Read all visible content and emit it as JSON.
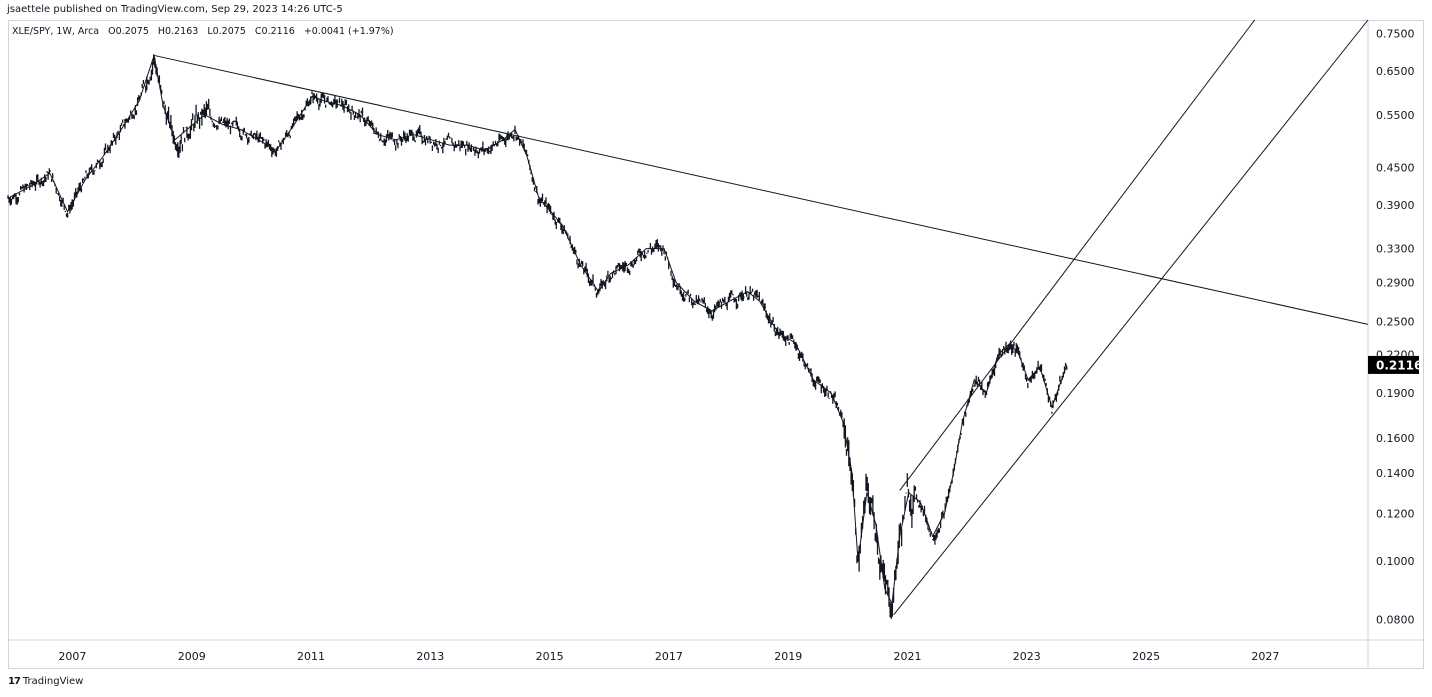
{
  "header": {
    "published_line": "jsaettele published on TradingView.com, Sep 29, 2023 14:26 UTC-5"
  },
  "legend": {
    "symbol": "XLE/SPY, 1W, Arca",
    "open": "O0.2075",
    "high": "H0.2163",
    "low": "L0.2075",
    "close": "C0.2116",
    "change": "+0.0041 (+1.97%)"
  },
  "footer": {
    "logo_glyph": "17",
    "brand": "TradingView"
  },
  "chart_data": {
    "type": "line",
    "yscale": "log",
    "ylim": [
      0.074,
      0.79
    ],
    "xlim": [
      2006.0,
      2028.8
    ],
    "yticks": [
      "0.7500",
      "0.6500",
      "0.5500",
      "0.4500",
      "0.3900",
      "0.3300",
      "0.2900",
      "0.2500",
      "0.2200",
      "0.1900",
      "0.1600",
      "0.1400",
      "0.1200",
      "0.1000",
      "0.0800"
    ],
    "xticks": [
      "2007",
      "2009",
      "2011",
      "2013",
      "2015",
      "2017",
      "2019",
      "2021",
      "2023",
      "2025",
      "2027"
    ],
    "last_price": "0.2116",
    "series": [
      {
        "x": [
          2006.0,
          2006.4,
          2006.7,
          2007.0,
          2007.3,
          2007.6,
          2007.9,
          2008.2,
          2008.45,
          2008.6,
          2008.8,
          2009.0,
          2009.3,
          2009.6,
          2009.9,
          2010.2,
          2010.5,
          2010.8,
          2011.1,
          2011.3,
          2011.6,
          2011.9,
          2012.2,
          2012.5,
          2012.8,
          2013.1,
          2013.4,
          2013.7,
          2014.0,
          2014.3,
          2014.5,
          2014.7,
          2014.9,
          2015.1,
          2015.3,
          2015.6,
          2015.9,
          2016.1,
          2016.4,
          2016.7,
          2017.0,
          2017.2,
          2017.5,
          2017.8,
          2018.1,
          2018.4,
          2018.6,
          2018.9,
          2019.2,
          2019.5,
          2019.8,
          2020.0,
          2020.15,
          2020.25,
          2020.4,
          2020.55,
          2020.7,
          2020.82,
          2020.95,
          2021.1,
          2021.3,
          2021.5,
          2021.7,
          2021.85,
          2022.0,
          2022.2,
          2022.4,
          2022.6,
          2022.8,
          2022.95,
          2023.1,
          2023.3,
          2023.5,
          2023.75
        ],
        "values": [
          0.4,
          0.42,
          0.44,
          0.38,
          0.43,
          0.47,
          0.52,
          0.58,
          0.69,
          0.57,
          0.5,
          0.52,
          0.55,
          0.53,
          0.52,
          0.5,
          0.48,
          0.53,
          0.59,
          0.58,
          0.57,
          0.55,
          0.51,
          0.5,
          0.51,
          0.5,
          0.49,
          0.49,
          0.48,
          0.5,
          0.52,
          0.47,
          0.4,
          0.38,
          0.36,
          0.31,
          0.28,
          0.3,
          0.31,
          0.33,
          0.33,
          0.29,
          0.27,
          0.26,
          0.27,
          0.28,
          0.27,
          0.24,
          0.23,
          0.2,
          0.19,
          0.17,
          0.14,
          0.1,
          0.13,
          0.115,
          0.09,
          0.085,
          0.11,
          0.13,
          0.125,
          0.11,
          0.12,
          0.14,
          0.17,
          0.2,
          0.19,
          0.22,
          0.23,
          0.22,
          0.2,
          0.21,
          0.18,
          0.2116
        ]
      }
    ],
    "trendlines": [
      {
        "x1": 2008.45,
        "y1": 0.69,
        "x2": 2028.8,
        "y2": 0.247
      },
      {
        "x1": 2020.95,
        "y1": 0.131,
        "x2": 2026.9,
        "y2": 0.79
      },
      {
        "x1": 2020.85,
        "y1": 0.0815,
        "x2": 2028.8,
        "y2": 0.79
      }
    ]
  }
}
